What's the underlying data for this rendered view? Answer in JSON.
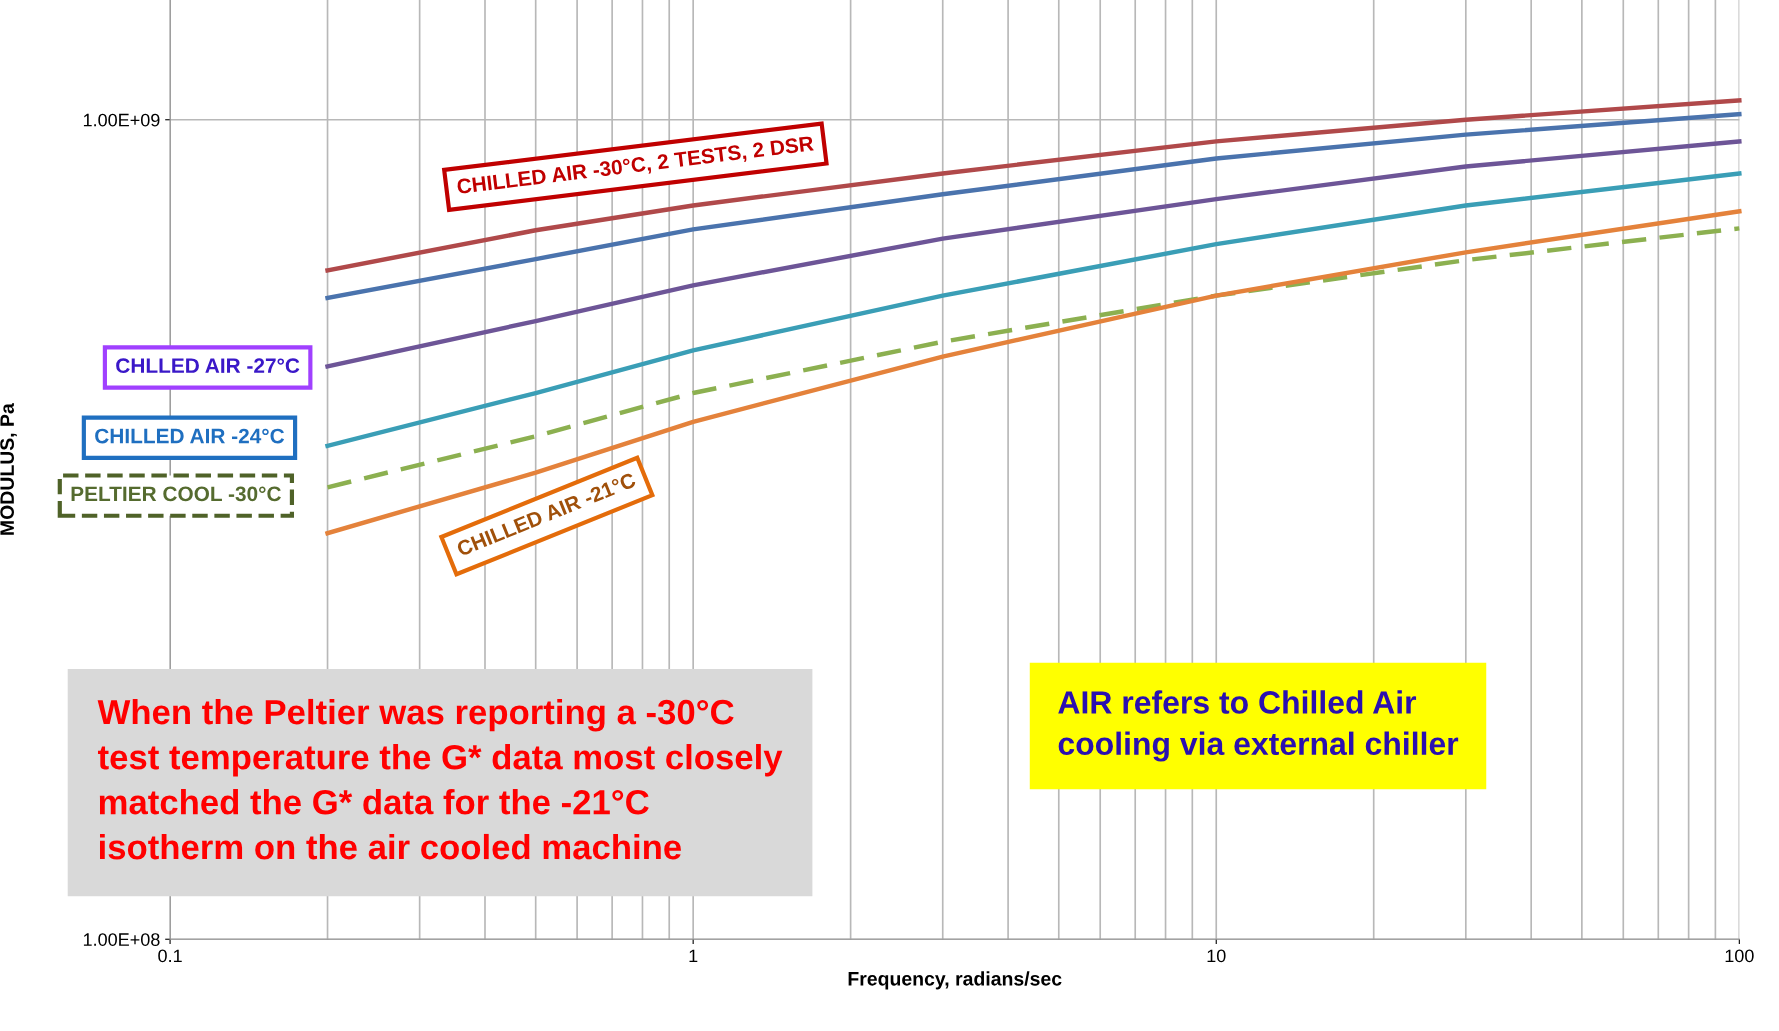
{
  "chart_data": {
    "type": "line",
    "xlabel": "Frequency, radians/sec",
    "ylabel": "MODULUS, Pa",
    "x": [
      0.2,
      0.5,
      1,
      3,
      10,
      30,
      100
    ],
    "series": [
      {
        "color": "#b0494a",
        "values": [
          655000000.0,
          733000000.0,
          786000000.0,
          860000000.0,
          941000000.0,
          1000000000.0,
          1056000000.0
        ]
      },
      {
        "color": "#4a73ad",
        "values": [
          606000000.0,
          676000000.0,
          735000000.0,
          811000000.0,
          897000000.0,
          959000000.0,
          1016000000.0
        ]
      },
      {
        "color": "#6d5597",
        "values": [
          500000000.0,
          568000000.0,
          628000000.0,
          716000000.0,
          800000000.0,
          877000000.0,
          941000000.0
        ]
      },
      {
        "color": "#3a9eb6",
        "values": [
          400000000.0,
          464000000.0,
          523000000.0,
          610000000.0,
          705000000.0,
          786000000.0,
          860000000.0
        ]
      },
      {
        "color": "#8cb050",
        "line_style": "dashed",
        "values": [
          356000000.0,
          411000000.0,
          464000000.0,
          536000000.0,
          610000000.0,
          674000000.0,
          737000000.0
        ]
      },
      {
        "color": "#e4823b",
        "values": [
          313000000.0,
          371000000.0,
          428000000.0,
          514000000.0,
          610000000.0,
          689000000.0,
          773000000.0
        ]
      }
    ],
    "xlim": [
      0.1,
      100
    ],
    "ylim": [
      100000000.0,
      1400000000.0
    ],
    "xticks": [
      0.1,
      1,
      10,
      100
    ],
    "yticks": [
      {
        "value": 100000000.0,
        "label": "1.00E+08"
      },
      {
        "value": 1000000000.0,
        "label": "1.00E+09"
      }
    ],
    "log": "xy",
    "grid": true,
    "marker": "none",
    "line_style": "solid",
    "annotations": [
      "CHILLED AIR -30°C, 2 TESTS, 2 DSR",
      "CHLLED AIR -27°C",
      "CHILLED AIR -24°C",
      "PELTIER COOL -30°C",
      "CHILLED AIR -21°C",
      "When the Peltier was reporting a -30°C\ntest temperature the G* data most closely\nmatched the G* data for the -21°C\nisotherm on the air cooled machine",
      "AIR refers to Chilled Air\ncooling via external chiller"
    ]
  }
}
